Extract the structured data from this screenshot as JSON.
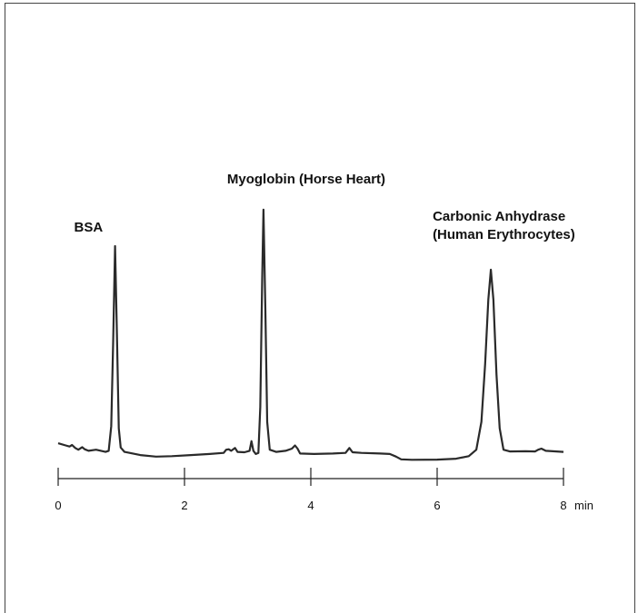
{
  "chart_data": {
    "type": "line",
    "title": "",
    "xlabel": "",
    "ylabel": "",
    "x_unit": "min",
    "xlim": [
      0,
      8
    ],
    "x_ticks": [
      "0",
      "2",
      "4",
      "6",
      "8"
    ],
    "grid": false,
    "colors": {
      "trace": "#2a2a2a",
      "axis": "#222222"
    },
    "peaks": [
      {
        "label": "BSA",
        "x": 0.9
      },
      {
        "label": "Myoglobin (Horse Heart)",
        "x": 3.25
      },
      {
        "label_lines": [
          "Carbonic Anhydrase",
          "(Human Erythrocytes)"
        ],
        "x": 6.85
      }
    ],
    "series": [
      {
        "points": [
          [
            0.0,
            0.08
          ],
          [
            0.12,
            0.07
          ],
          [
            0.18,
            0.065
          ],
          [
            0.22,
            0.072
          ],
          [
            0.27,
            0.058
          ],
          [
            0.32,
            0.05
          ],
          [
            0.38,
            0.062
          ],
          [
            0.42,
            0.052
          ],
          [
            0.48,
            0.045
          ],
          [
            0.6,
            0.05
          ],
          [
            0.75,
            0.04
          ],
          [
            0.8,
            0.045
          ],
          [
            0.84,
            0.16
          ],
          [
            0.87,
            0.55
          ],
          [
            0.9,
            1.0
          ],
          [
            0.93,
            0.6
          ],
          [
            0.96,
            0.15
          ],
          [
            0.99,
            0.06
          ],
          [
            1.05,
            0.04
          ],
          [
            1.3,
            0.025
          ],
          [
            1.55,
            0.018
          ],
          [
            1.8,
            0.02
          ],
          [
            2.1,
            0.025
          ],
          [
            2.4,
            0.03
          ],
          [
            2.62,
            0.035
          ],
          [
            2.66,
            0.05
          ],
          [
            2.7,
            0.052
          ],
          [
            2.74,
            0.045
          ],
          [
            2.8,
            0.058
          ],
          [
            2.84,
            0.04
          ],
          [
            2.95,
            0.038
          ],
          [
            3.03,
            0.045
          ],
          [
            3.06,
            0.09
          ],
          [
            3.09,
            0.045
          ],
          [
            3.13,
            0.03
          ],
          [
            3.17,
            0.035
          ],
          [
            3.2,
            0.25
          ],
          [
            3.23,
            0.85
          ],
          [
            3.25,
            1.17
          ],
          [
            3.28,
            0.7
          ],
          [
            3.31,
            0.18
          ],
          [
            3.35,
            0.05
          ],
          [
            3.45,
            0.04
          ],
          [
            3.6,
            0.045
          ],
          [
            3.7,
            0.055
          ],
          [
            3.75,
            0.07
          ],
          [
            3.79,
            0.055
          ],
          [
            3.83,
            0.032
          ],
          [
            4.05,
            0.03
          ],
          [
            4.35,
            0.032
          ],
          [
            4.55,
            0.035
          ],
          [
            4.61,
            0.058
          ],
          [
            4.66,
            0.038
          ],
          [
            4.8,
            0.035
          ],
          [
            5.1,
            0.032
          ],
          [
            5.25,
            0.03
          ],
          [
            5.35,
            0.018
          ],
          [
            5.43,
            0.005
          ],
          [
            5.6,
            0.003
          ],
          [
            6.0,
            0.004
          ],
          [
            6.3,
            0.008
          ],
          [
            6.5,
            0.02
          ],
          [
            6.62,
            0.05
          ],
          [
            6.7,
            0.18
          ],
          [
            6.76,
            0.45
          ],
          [
            6.81,
            0.75
          ],
          [
            6.85,
            0.89
          ],
          [
            6.89,
            0.75
          ],
          [
            6.94,
            0.4
          ],
          [
            6.99,
            0.15
          ],
          [
            7.05,
            0.05
          ],
          [
            7.15,
            0.042
          ],
          [
            7.4,
            0.043
          ],
          [
            7.55,
            0.042
          ],
          [
            7.6,
            0.05
          ],
          [
            7.65,
            0.055
          ],
          [
            7.72,
            0.045
          ],
          [
            8.0,
            0.04
          ]
        ]
      }
    ]
  }
}
